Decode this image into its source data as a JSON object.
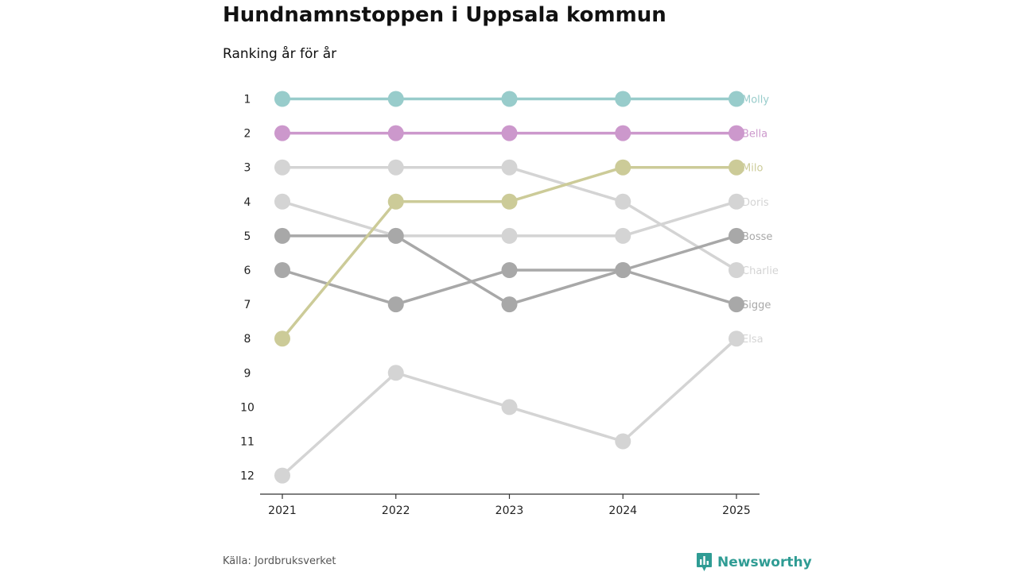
{
  "title": "Hundnamnstoppen i Uppsala kommun",
  "subtitle": "Ranking år för år",
  "source": "Källa: Jordbruksverket",
  "brand": {
    "name": "Newsworthy",
    "color": "#2f9c94"
  },
  "chart_data": {
    "type": "line",
    "x": [
      "2021",
      "2022",
      "2023",
      "2024",
      "2025"
    ],
    "y_ticks": [
      "1",
      "2",
      "3",
      "4",
      "5",
      "6",
      "7",
      "8",
      "9",
      "10",
      "11",
      "12"
    ],
    "ylim": [
      1,
      12
    ],
    "y_inverted": true,
    "xlabel": "",
    "ylabel": "",
    "series": [
      {
        "name": "Elsa",
        "values": [
          12,
          9,
          10,
          11,
          8
        ],
        "color": "#d4d4d4"
      },
      {
        "name": "Charlie",
        "values": [
          3,
          3,
          3,
          4,
          6
        ],
        "color": "#d4d4d4"
      },
      {
        "name": "Doris",
        "values": [
          4,
          5,
          5,
          5,
          4
        ],
        "color": "#d4d4d4"
      },
      {
        "name": "Bosse",
        "values": [
          5,
          5,
          7,
          6,
          5
        ],
        "color": "#a8a8a8"
      },
      {
        "name": "Sigge",
        "values": [
          6,
          7,
          6,
          6,
          7
        ],
        "color": "#a8a8a8"
      },
      {
        "name": "Milo",
        "values": [
          8,
          4,
          4,
          3,
          3
        ],
        "color": "#cccb98"
      },
      {
        "name": "Bella",
        "values": [
          2,
          2,
          2,
          2,
          2
        ],
        "color": "#cc98cc"
      },
      {
        "name": "Molly",
        "values": [
          1,
          1,
          1,
          1,
          1
        ],
        "color": "#98cccb"
      }
    ]
  }
}
